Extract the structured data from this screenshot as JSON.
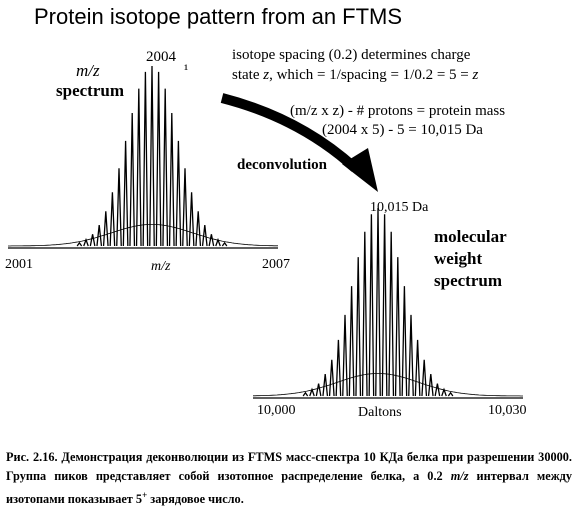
{
  "title": "Protein isotope pattern from an FTMS",
  "left_spectrum": {
    "label_mz": "m/z",
    "label_word": "spectrum",
    "peak_label": "2004",
    "peak_marker": "¹",
    "x_start": "2001",
    "x_end": "2007",
    "x_axis_label": "m/z"
  },
  "notes": {
    "line1": "isotope spacing (0.2) determines charge",
    "line2_a": "state ",
    "line2_z": "z",
    "line2_b": ", which = 1/spacing = 1/0.2 = 5 = ",
    "line2_z2": "z",
    "line3": "(m/z x z) - # protons = protein mass",
    "line4": "(2004 x 5) - 5  =  10,015 Da"
  },
  "arrow_label": "deconvolution",
  "right_spectrum": {
    "peak_label": "10,015 Da",
    "label_line1": "molecular",
    "label_line2": "weight",
    "label_line3": "spectrum",
    "x_start": "10,000",
    "x_end": "10,030",
    "x_axis_label": "Daltons"
  },
  "caption": {
    "part1": "Рис. 2.16",
    "part2": ". Демонстрация деконволюции из FTMS масс-спектра 10 КДа белка при разрешении 30000. Группа пиков представляет собой изотопное распределение белка, а 0.2 ",
    "mz": "m/z",
    "part3": " интервал между изотопами показывает 5",
    "sup": "+",
    "part4": " зарядовое число."
  }
}
